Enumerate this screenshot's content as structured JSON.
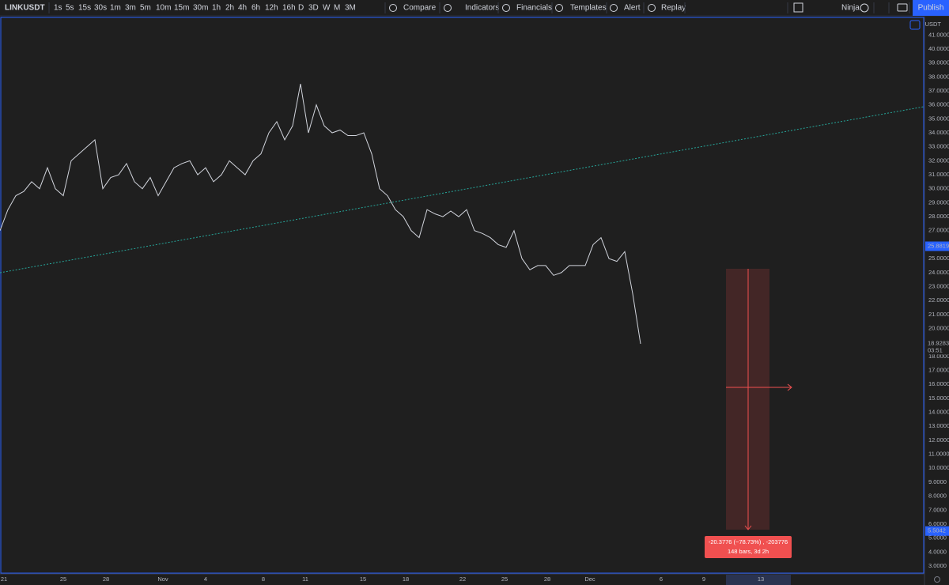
{
  "toolbar": {
    "symbol": "LINKUSDT",
    "intervals": [
      "1s",
      "5s",
      "15s",
      "30s",
      "1m",
      "3m",
      "5m",
      "10m",
      "15m",
      "30m",
      "1h",
      "2h",
      "4h",
      "6h",
      "12h",
      "16h",
      "D",
      "3D",
      "W",
      "M",
      "3M"
    ],
    "active_interval": "30m",
    "buttons": [
      "Compare",
      "Indicators",
      "Financials",
      "Templates",
      "Alert",
      "Replay"
    ],
    "layout_name": "Ninja",
    "publish": "Publish"
  },
  "chart_data": {
    "type": "line",
    "currency": "USDT",
    "color": "#d1d4dc",
    "values": [
      27.0,
      28.5,
      29.5,
      29.8,
      30.5,
      30.0,
      31.5,
      30.0,
      29.5,
      32.0,
      32.5,
      33.0,
      33.5,
      30.0,
      30.8,
      31.0,
      31.8,
      30.5,
      30.0,
      30.8,
      29.5,
      30.5,
      31.5,
      31.8,
      32.0,
      31.0,
      31.5,
      30.5,
      31.0,
      32.0,
      31.5,
      31.0,
      32.0,
      32.5,
      34.0,
      34.8,
      33.5,
      34.5,
      37.5,
      34.0,
      36.0,
      34.5,
      34.0,
      34.2,
      33.8,
      33.8,
      34.0,
      32.5,
      30.0,
      29.5,
      28.5,
      28.0,
      27.0,
      26.5,
      28.5,
      28.2,
      28.0,
      28.4,
      28.0,
      28.5,
      27.0,
      26.8,
      26.5,
      26.0,
      25.8,
      27.0,
      25.0,
      24.2,
      24.5,
      24.5,
      23.8,
      24.0,
      24.5,
      24.5,
      24.5,
      26.0,
      26.5,
      25.0,
      24.8,
      25.5,
      22.5,
      18.9
    ],
    "ylim": [
      2.49,
      42.26
    ],
    "yticks": [
      {
        "value": 3,
        "label": "3.0000"
      },
      {
        "value": 4,
        "label": "4.0000"
      },
      {
        "value": 5,
        "label": "5.0000"
      },
      {
        "value": 6,
        "label": "6.0000"
      },
      {
        "value": 7,
        "label": "7.0000"
      },
      {
        "value": 8,
        "label": "8.0000"
      },
      {
        "value": 9,
        "label": "9.0000"
      },
      {
        "value": 10,
        "label": "10.0000"
      },
      {
        "value": 11,
        "label": "11.0000"
      },
      {
        "value": 12,
        "label": "12.0000"
      },
      {
        "value": 13,
        "label": "13.0000"
      },
      {
        "value": 14,
        "label": "14.0000"
      },
      {
        "value": 15,
        "label": "15.0000"
      },
      {
        "value": 16,
        "label": "16.0000"
      },
      {
        "value": 17,
        "label": "17.0000"
      },
      {
        "value": 18,
        "label": "18.0000"
      },
      {
        "value": 19,
        "label": "19.0000"
      },
      {
        "value": 20,
        "label": "20.0000"
      },
      {
        "value": 21,
        "label": "21.0000"
      },
      {
        "value": 22,
        "label": "22.0000"
      },
      {
        "value": 23,
        "label": "23.0000"
      },
      {
        "value": 24,
        "label": "24.0000"
      },
      {
        "value": 25,
        "label": "25.0000"
      },
      {
        "value": 26,
        "label": "26.0000"
      },
      {
        "value": 27,
        "label": "27.0000"
      },
      {
        "value": 28,
        "label": "28.0000"
      },
      {
        "value": 29,
        "label": "29.0000"
      },
      {
        "value": 30,
        "label": "30.0000"
      },
      {
        "value": 31,
        "label": "31.0000"
      },
      {
        "value": 32,
        "label": "32.0000"
      },
      {
        "value": 33,
        "label": "33.0000"
      },
      {
        "value": 34,
        "label": "34.0000"
      },
      {
        "value": 35,
        "label": "35.0000"
      },
      {
        "value": 36,
        "label": "36.0000"
      },
      {
        "value": 37,
        "label": "37.0000"
      },
      {
        "value": 38,
        "label": "38.0000"
      },
      {
        "value": 39,
        "label": "39.0000"
      },
      {
        "value": 40,
        "label": "40.0000"
      },
      {
        "value": 41,
        "label": "41.0000"
      }
    ],
    "x_labels": [
      "21",
      "25",
      "28",
      "Nov",
      "4",
      "8",
      "11",
      "15",
      "18",
      "22",
      "25",
      "28",
      "Dec",
      "6",
      "9",
      "13"
    ]
  },
  "price_labels": {
    "high": 25.8819,
    "last": 18.9283,
    "countdown": "03:51",
    "low": 5.5042
  },
  "measure": {
    "change": "-20.3776 (−78.73%) , -203776",
    "range": "148 bars, 3d 2h"
  }
}
